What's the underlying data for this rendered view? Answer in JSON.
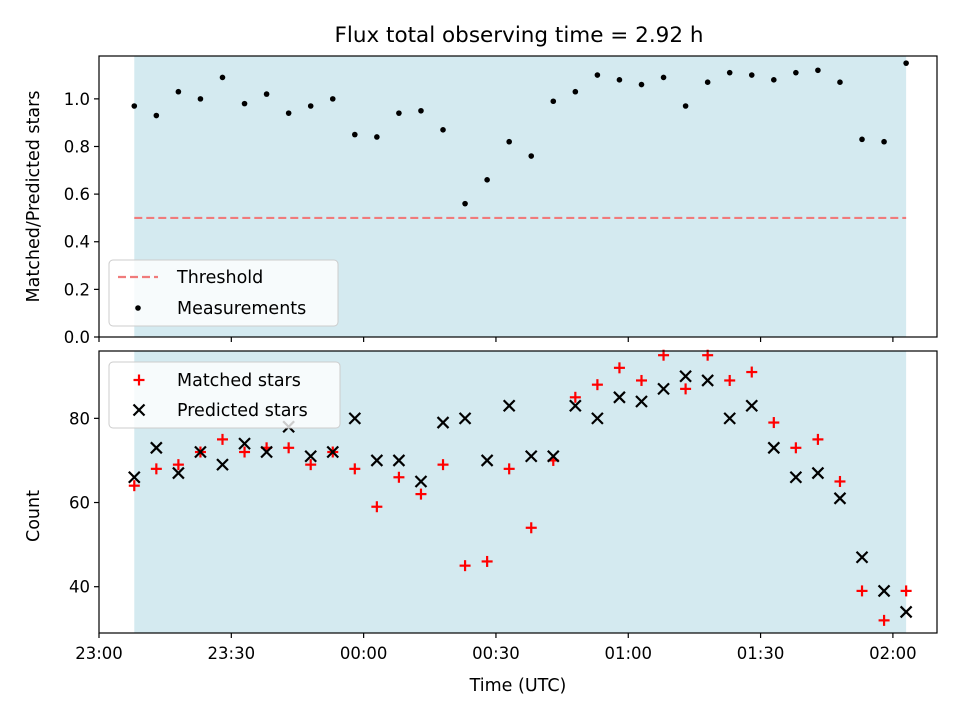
{
  "title": "Flux total observing time = 2.92 h",
  "colors": {
    "shade": "#d4eaf0",
    "threshold": "#f07b7b",
    "measurement": "#000000",
    "matched": "#ff0000",
    "predicted": "#000000"
  },
  "chart_data": [
    {
      "type": "scatter",
      "name": "ratio",
      "xlabel": "",
      "ylabel": "Matched/Predicted stars",
      "xlim": [
        "23:00",
        "02:10"
      ],
      "ylim": [
        0,
        1.18
      ],
      "yticks": [
        0.0,
        0.2,
        0.4,
        0.6,
        0.8,
        1.0
      ],
      "ytick_labels": [
        "0.0",
        "0.2",
        "0.4",
        "0.6",
        "0.8",
        "1.0"
      ],
      "grid": false,
      "legend": "lower-left",
      "shaded_span": [
        "23:08",
        "02:03"
      ],
      "threshold": {
        "name": "Threshold",
        "y": 0.5,
        "x": [
          "23:08",
          "02:03"
        ],
        "style": "dashed"
      },
      "series": [
        {
          "name": "Measurements",
          "marker": "dot",
          "x": [
            "23:08",
            "23:13",
            "23:18",
            "23:23",
            "23:28",
            "23:33",
            "23:38",
            "23:43",
            "23:48",
            "23:53",
            "23:58",
            "00:03",
            "00:08",
            "00:13",
            "00:18",
            "00:23",
            "00:28",
            "00:33",
            "00:38",
            "00:43",
            "00:48",
            "00:53",
            "00:58",
            "01:03",
            "01:08",
            "01:13",
            "01:18",
            "01:23",
            "01:28",
            "01:33",
            "01:38",
            "01:43",
            "01:48",
            "01:53",
            "01:58",
            "02:03"
          ],
          "y": [
            0.97,
            0.93,
            1.03,
            1.0,
            1.09,
            0.98,
            1.02,
            0.94,
            0.97,
            1.0,
            0.85,
            0.84,
            0.94,
            0.95,
            0.87,
            0.56,
            0.66,
            0.82,
            0.76,
            0.99,
            1.03,
            1.1,
            1.08,
            1.06,
            1.09,
            0.97,
            1.07,
            1.11,
            1.1,
            1.08,
            1.11,
            1.12,
            1.07,
            0.83,
            0.82,
            1.15
          ]
        }
      ]
    },
    {
      "type": "scatter",
      "name": "counts",
      "xlabel": "Time (UTC)",
      "ylabel": "Count",
      "xlim": [
        "23:00",
        "02:10"
      ],
      "ylim": [
        29,
        96
      ],
      "yticks": [
        40,
        60,
        80
      ],
      "ytick_labels": [
        "40",
        "60",
        "80"
      ],
      "xticks": [
        "23:00",
        "23:30",
        "00:00",
        "00:30",
        "01:00",
        "01:30",
        "02:00"
      ],
      "xtick_labels": [
        "23:00",
        "23:30",
        "00:00",
        "00:30",
        "01:00",
        "01:30",
        "02:00"
      ],
      "grid": false,
      "legend": "top-left",
      "shaded_span": [
        "23:08",
        "02:03"
      ],
      "series": [
        {
          "name": "Matched stars",
          "marker": "plus",
          "x": [
            "23:08",
            "23:13",
            "23:18",
            "23:23",
            "23:28",
            "23:33",
            "23:38",
            "23:43",
            "23:48",
            "23:53",
            "23:58",
            "00:03",
            "00:08",
            "00:13",
            "00:18",
            "00:23",
            "00:28",
            "00:33",
            "00:38",
            "00:43",
            "00:48",
            "00:53",
            "00:58",
            "01:03",
            "01:08",
            "01:13",
            "01:18",
            "01:23",
            "01:28",
            "01:33",
            "01:38",
            "01:43",
            "01:48",
            "01:53",
            "01:58",
            "02:03"
          ],
          "y": [
            64,
            68,
            69,
            72,
            75,
            72,
            73,
            73,
            69,
            72,
            68,
            59,
            66,
            62,
            69,
            45,
            46,
            68,
            54,
            70,
            85,
            88,
            92,
            89,
            95,
            87,
            95,
            89,
            91,
            79,
            73,
            75,
            65,
            39,
            32,
            39
          ]
        },
        {
          "name": "Predicted stars",
          "marker": "x",
          "x": [
            "23:08",
            "23:13",
            "23:18",
            "23:23",
            "23:28",
            "23:33",
            "23:38",
            "23:43",
            "23:48",
            "23:53",
            "23:58",
            "00:03",
            "00:08",
            "00:13",
            "00:18",
            "00:23",
            "00:28",
            "00:33",
            "00:38",
            "00:43",
            "00:48",
            "00:53",
            "00:58",
            "01:03",
            "01:08",
            "01:13",
            "01:18",
            "01:23",
            "01:28",
            "01:33",
            "01:38",
            "01:43",
            "01:48",
            "01:53",
            "01:58",
            "02:03"
          ],
          "y": [
            66,
            73,
            67,
            72,
            69,
            74,
            72,
            78,
            71,
            72,
            80,
            70,
            70,
            65,
            79,
            80,
            70,
            83,
            71,
            71,
            83,
            80,
            85,
            84,
            87,
            90,
            89,
            80,
            83,
            73,
            66,
            67,
            61,
            47,
            39,
            34
          ]
        }
      ]
    }
  ]
}
